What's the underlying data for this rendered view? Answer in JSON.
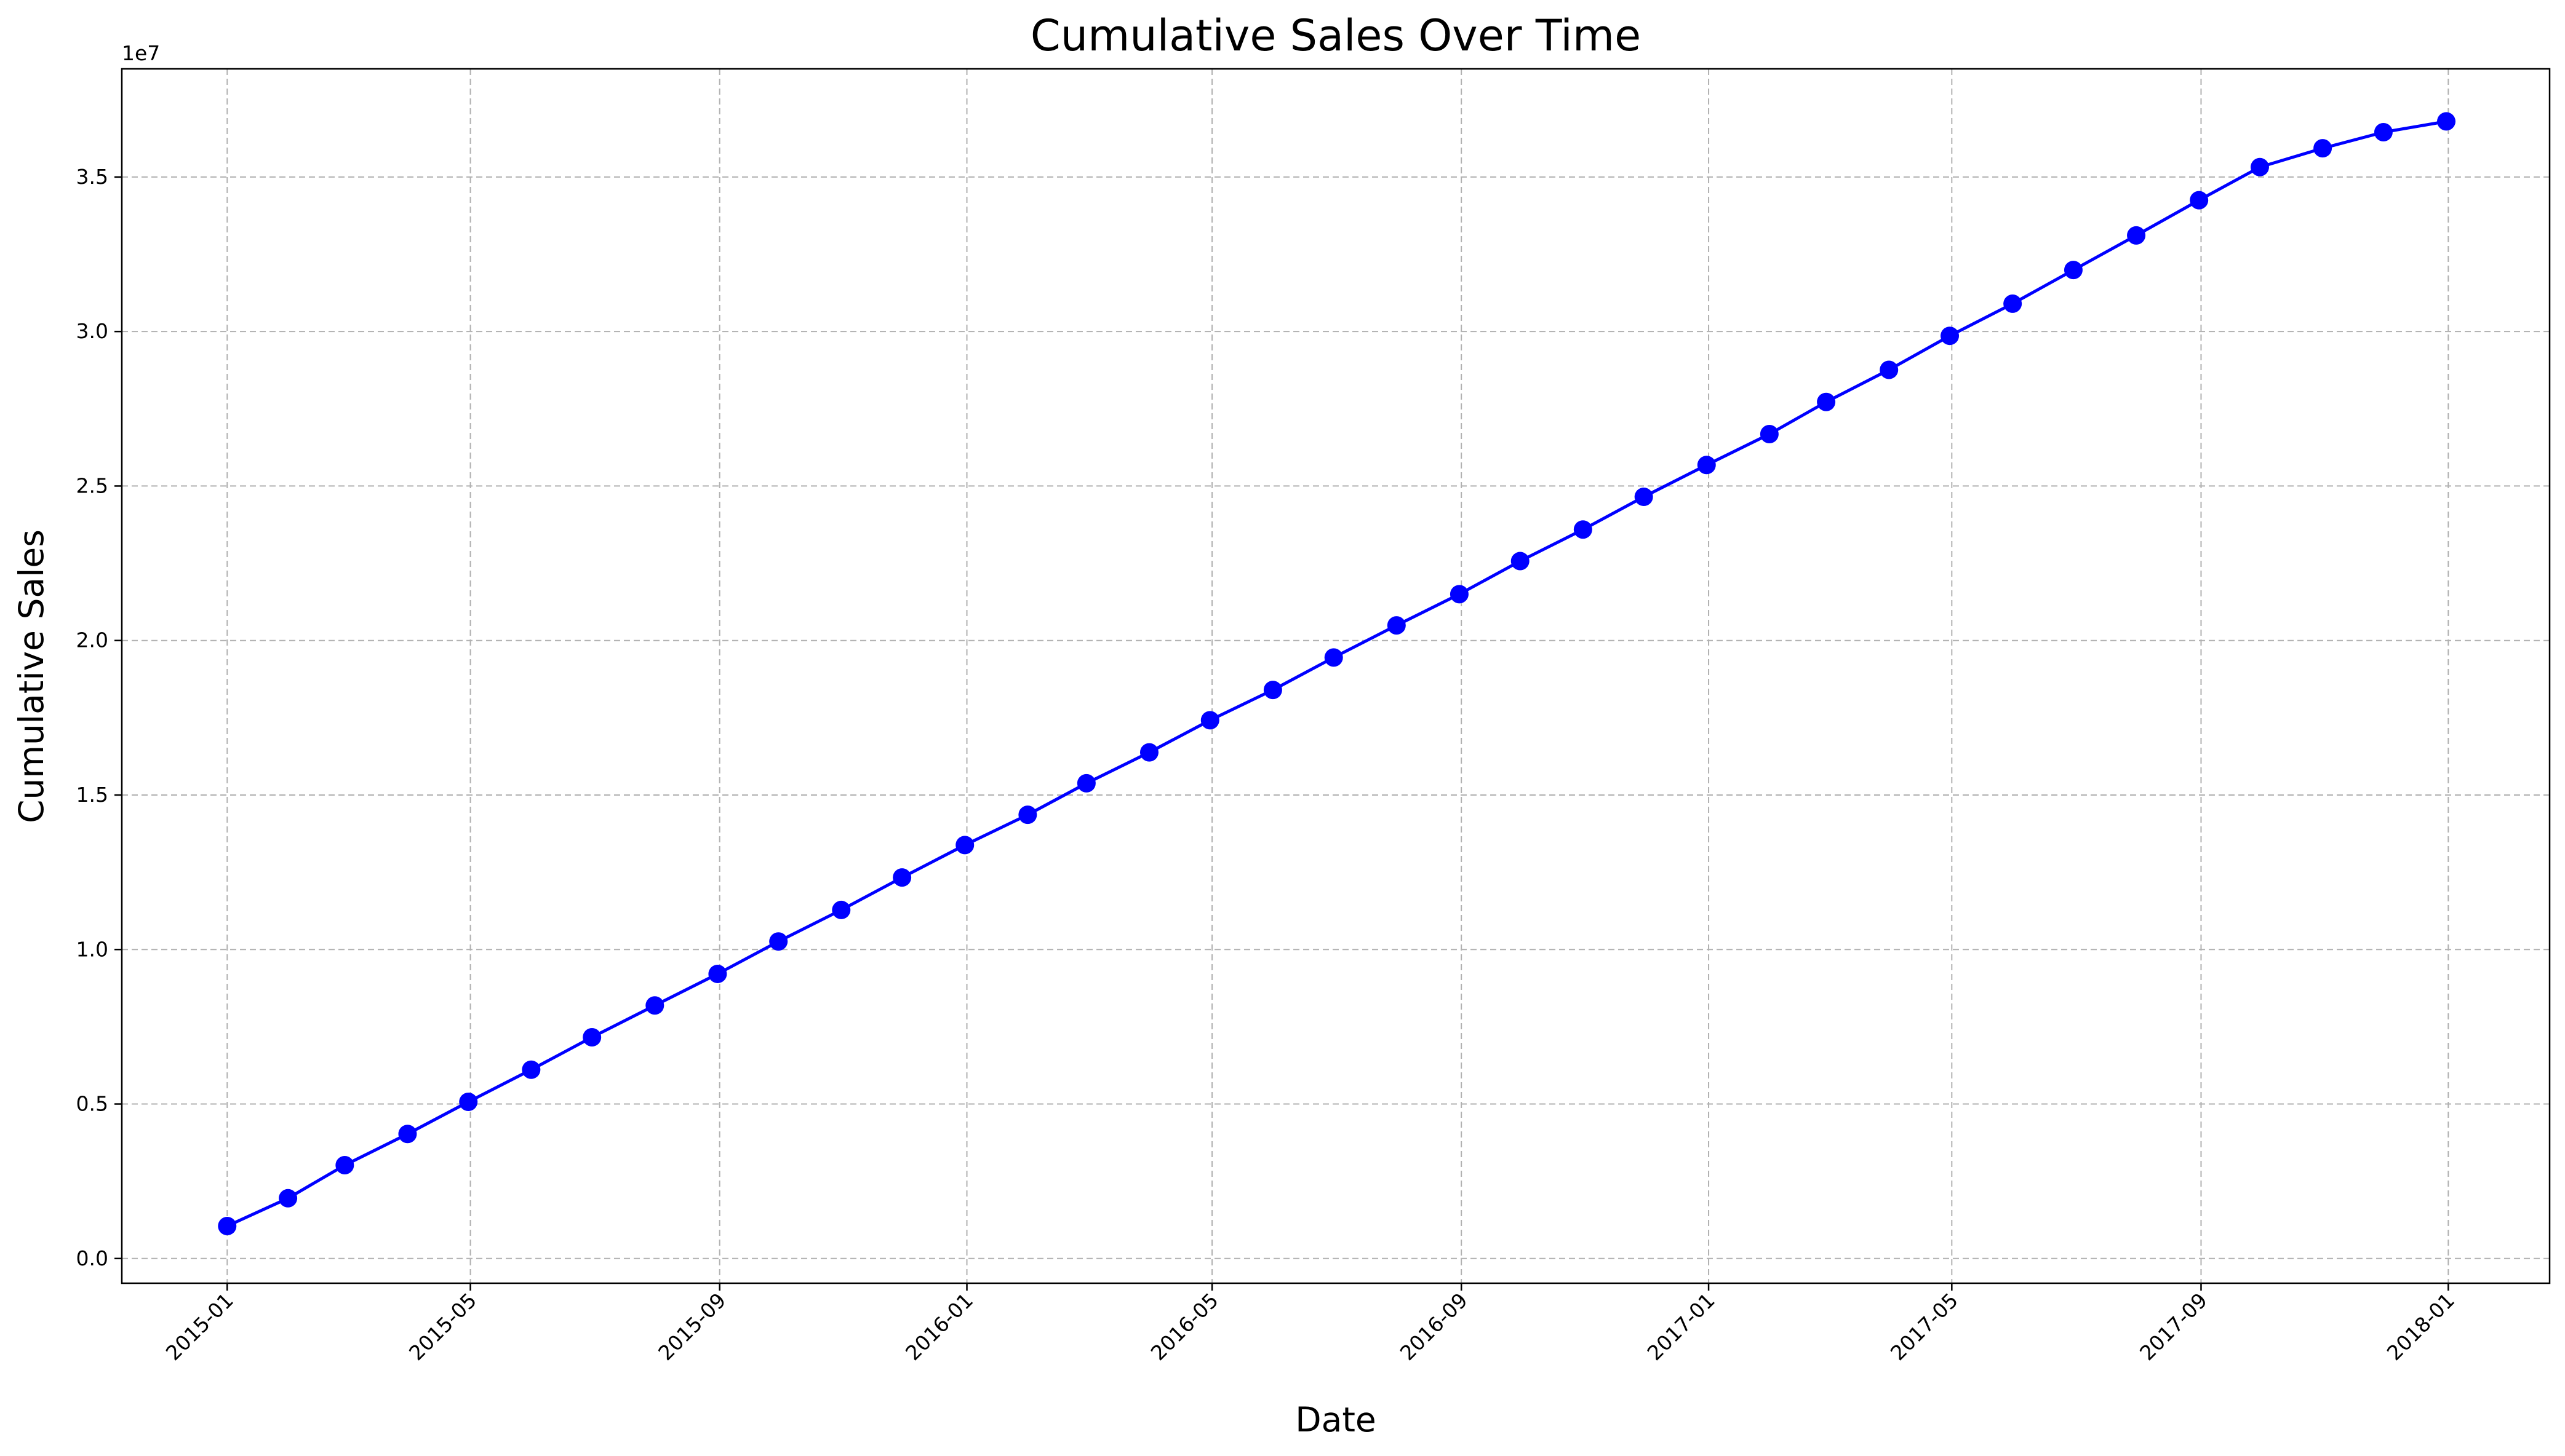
{
  "chart_data": {
    "type": "line",
    "title": "Cumulative Sales Over Time",
    "xlabel": "Date",
    "ylabel": "Cumulative Sales",
    "y_offset_label": "1e7",
    "y_scale_factor": 10000000,
    "grid": true,
    "legend": "none",
    "x_dates": [
      "2015-01-01",
      "2015-01-31",
      "2015-02-28",
      "2015-03-31",
      "2015-04-30",
      "2015-05-31",
      "2015-06-30",
      "2015-07-31",
      "2015-08-31",
      "2015-09-30",
      "2015-10-31",
      "2015-11-30",
      "2015-12-31",
      "2016-01-31",
      "2016-02-29",
      "2016-03-31",
      "2016-04-30",
      "2016-05-31",
      "2016-06-30",
      "2016-07-31",
      "2016-08-31",
      "2016-09-30",
      "2016-10-31",
      "2016-11-30",
      "2016-12-31",
      "2017-01-31",
      "2017-02-28",
      "2017-03-31",
      "2017-04-30",
      "2017-05-31",
      "2017-06-30",
      "2017-07-31",
      "2017-08-31",
      "2017-09-30",
      "2017-10-31",
      "2017-11-30",
      "2017-12-31"
    ],
    "series": [
      {
        "color": "#0000ff",
        "marker": "circle",
        "values": [
          1050000,
          1950000,
          3020000,
          4030000,
          5070000,
          6110000,
          7160000,
          8190000,
          9210000,
          10260000,
          11280000,
          12330000,
          13380000,
          14360000,
          15380000,
          16380000,
          17420000,
          18400000,
          19450000,
          20490000,
          21500000,
          22570000,
          23590000,
          24650000,
          25680000,
          26680000,
          27720000,
          28760000,
          29860000,
          30900000,
          31990000,
          33110000,
          34250000,
          35320000,
          35930000,
          36450000,
          36800000
        ]
      }
    ],
    "xlim": [
      "2014-11-10",
      "2018-02-20"
    ],
    "ylim": [
      -800000,
      38500000
    ],
    "x_ticks": [
      {
        "date": "2015-01-01",
        "label": "2015-01"
      },
      {
        "date": "2015-05-01",
        "label": "2015-05"
      },
      {
        "date": "2015-09-01",
        "label": "2015-09"
      },
      {
        "date": "2016-01-01",
        "label": "2016-01"
      },
      {
        "date": "2016-05-01",
        "label": "2016-05"
      },
      {
        "date": "2016-09-01",
        "label": "2016-09"
      },
      {
        "date": "2017-01-01",
        "label": "2017-01"
      },
      {
        "date": "2017-05-01",
        "label": "2017-05"
      },
      {
        "date": "2017-09-01",
        "label": "2017-09"
      },
      {
        "date": "2018-01-01",
        "label": "2018-01"
      }
    ],
    "y_ticks": [
      {
        "value": 0,
        "label": "0.0"
      },
      {
        "value": 5000000,
        "label": "0.5"
      },
      {
        "value": 10000000,
        "label": "1.0"
      },
      {
        "value": 15000000,
        "label": "1.5"
      },
      {
        "value": 20000000,
        "label": "2.0"
      },
      {
        "value": 25000000,
        "label": "2.5"
      },
      {
        "value": 30000000,
        "label": "3.0"
      },
      {
        "value": 35000000,
        "label": "3.5"
      }
    ],
    "colors": {
      "line": "#0000ff",
      "grid": "#b0b0b0",
      "axis": "#000000"
    }
  }
}
